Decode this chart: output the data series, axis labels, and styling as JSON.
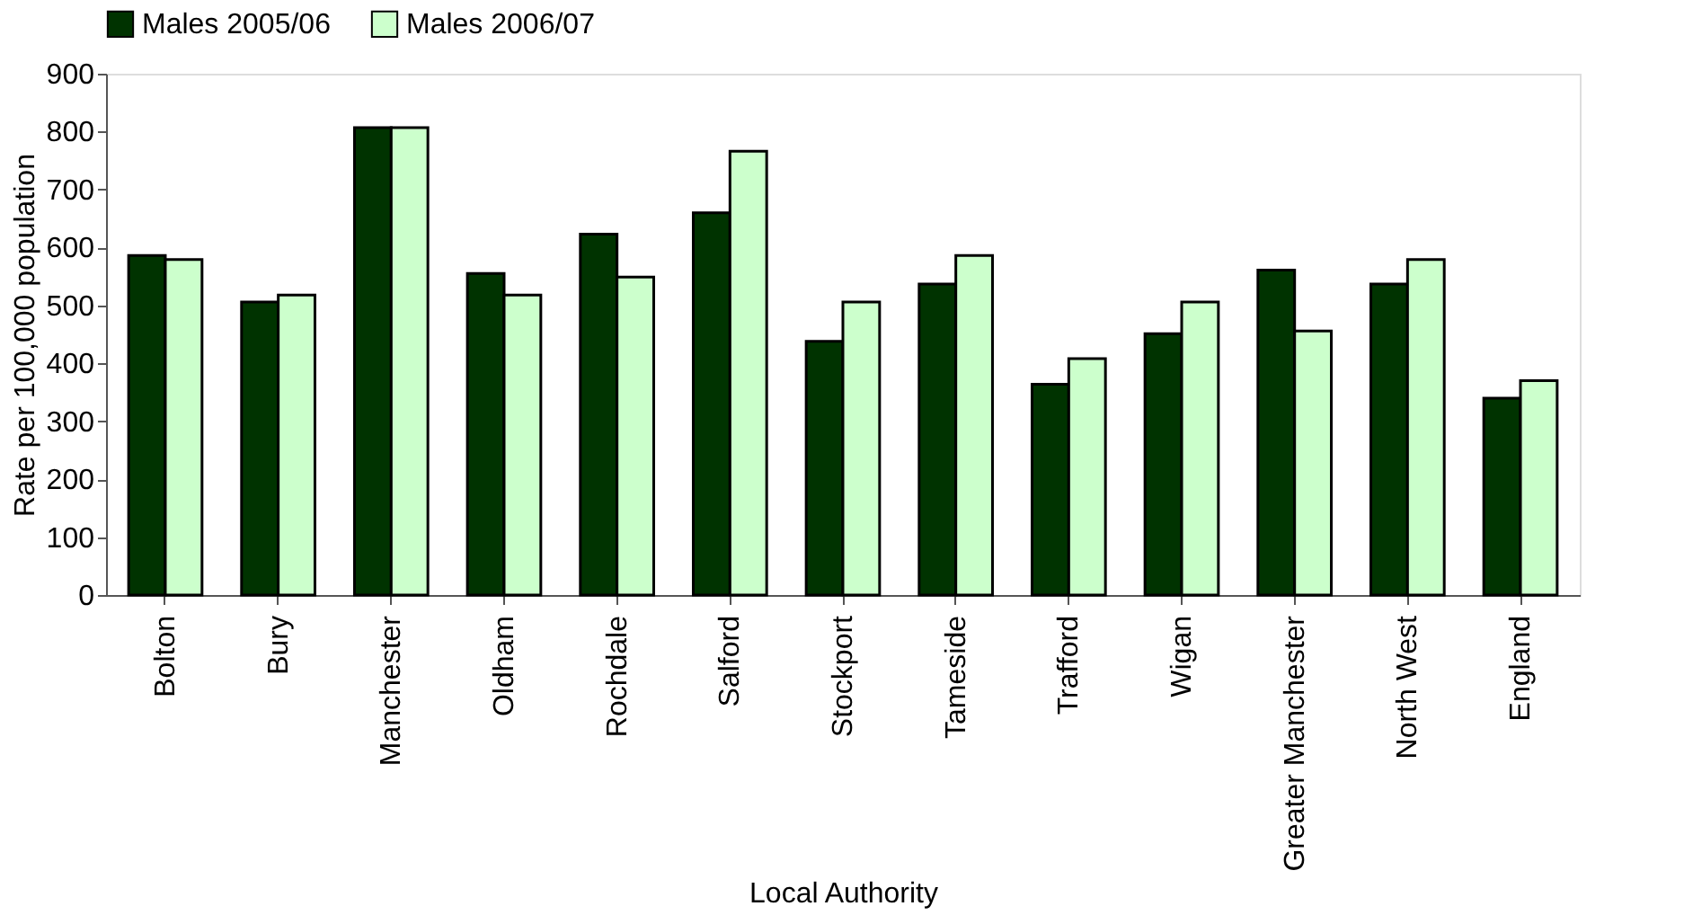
{
  "chart_data": {
    "type": "bar",
    "xlabel": "Local Authority",
    "ylabel": "Rate per 100,000 population",
    "categories": [
      "Bolton",
      "Bury",
      "Manchester",
      "Oldham",
      "Rochdale",
      "Salford",
      "Stockport",
      "Tameside",
      "Trafford",
      "Wigan",
      "Greater Manchester",
      "North West",
      "England"
    ],
    "series": [
      {
        "name": "Males 2005/06",
        "color": "#003300",
        "values": [
          586,
          506,
          807,
          555,
          623,
          660,
          438,
          537,
          364,
          451,
          561,
          537,
          340
        ]
      },
      {
        "name": "Males 2006/07",
        "color": "#ccffcc",
        "values": [
          579,
          518,
          807,
          518,
          549,
          766,
          506,
          586,
          408,
          506,
          456,
          579,
          370
        ]
      }
    ],
    "ylim": [
      0,
      900
    ],
    "yticks": [
      0,
      100,
      200,
      300,
      400,
      500,
      600,
      700,
      800,
      900
    ],
    "grid": false,
    "legend": "top"
  }
}
